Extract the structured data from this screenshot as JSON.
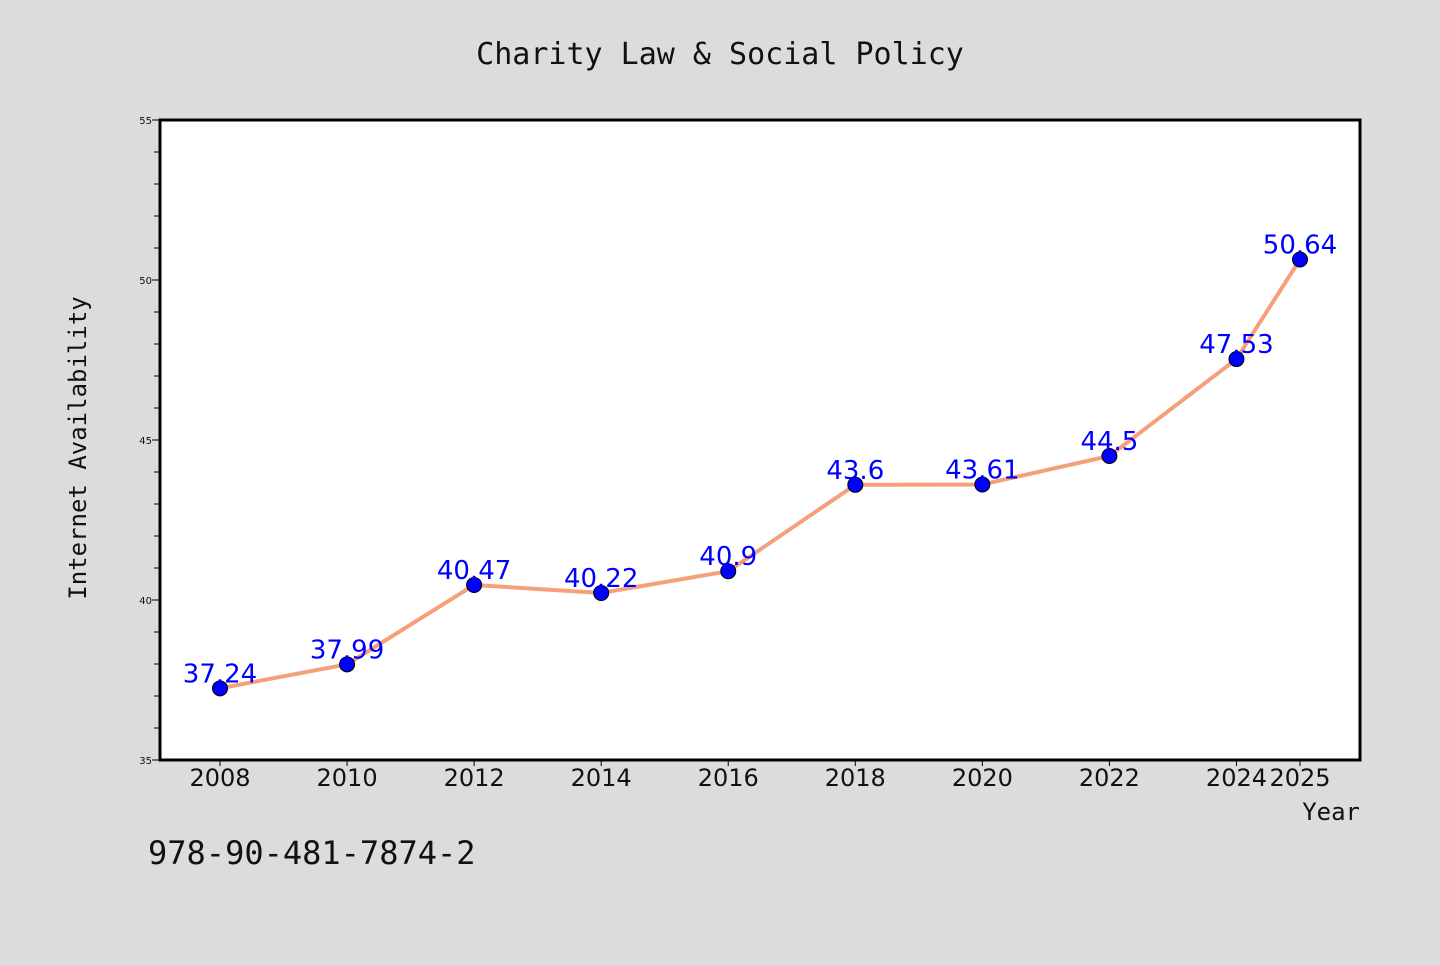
{
  "page": {
    "background_color": "#dcdcdc",
    "plot_background_color": "#ffffff",
    "isbn": "978-90-481-7874-2"
  },
  "chart_data": {
    "type": "line",
    "title": "Charity Law & Social Policy",
    "xlabel": "Year",
    "ylabel": "Internet Availability",
    "x": [
      "2008",
      "2010",
      "2012",
      "2014",
      "2016",
      "2018",
      "2020",
      "2022",
      "2024",
      "2025"
    ],
    "series": [
      {
        "values": [
          37.24,
          37.99,
          40.47,
          40.22,
          40.9,
          43.6,
          43.61,
          44.5,
          47.53,
          50.64
        ],
        "labels": [
          "37.24",
          "37.99",
          "40.47",
          "40.22",
          "40.9",
          "43.6",
          "43.61",
          "44.5",
          "47.53",
          "50.64"
        ],
        "line_color": "#f4a07a",
        "marker_color": "#0000ff",
        "label_color": "#0000ff"
      }
    ],
    "ylim": [
      35,
      55
    ],
    "yticks": [
      "35",
      "40",
      "45",
      "50",
      "55"
    ],
    "grid": false,
    "legend": "none"
  }
}
